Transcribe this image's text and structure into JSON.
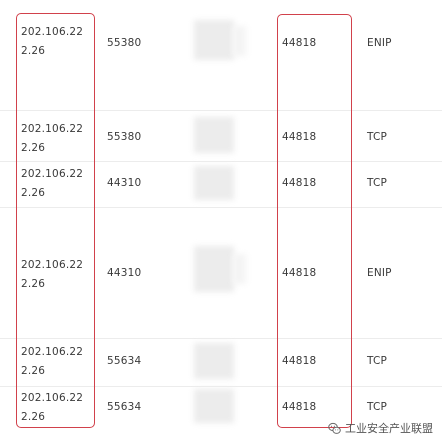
{
  "rows": [
    {
      "ip_line1": "202.106.22",
      "ip_line2": "2.26",
      "src_port": "55380",
      "dst_port": "44818",
      "protocol": "ENIP"
    },
    {
      "ip_line1": "202.106.22",
      "ip_line2": "2.26",
      "src_port": "55380",
      "dst_port": "44818",
      "protocol": "TCP"
    },
    {
      "ip_line1": "202.106.22",
      "ip_line2": "2.26",
      "src_port": "44310",
      "dst_port": "44818",
      "protocol": "TCP"
    },
    {
      "ip_line1": "202.106.22",
      "ip_line2": "2.26",
      "src_port": "44310",
      "dst_port": "44818",
      "protocol": "ENIP"
    },
    {
      "ip_line1": "202.106.22",
      "ip_line2": "2.26",
      "src_port": "55634",
      "dst_port": "44818",
      "protocol": "TCP"
    },
    {
      "ip_line1": "202.106.22",
      "ip_line2": "2.26",
      "src_port": "55634",
      "dst_port": "44818",
      "protocol": "TCP"
    }
  ],
  "watermark": {
    "icon": "wechat-icon",
    "text": "工业安全产业联盟"
  },
  "colors": {
    "highlight": "#d1414b",
    "text": "#3a3a3a",
    "divider": "#ececec"
  }
}
